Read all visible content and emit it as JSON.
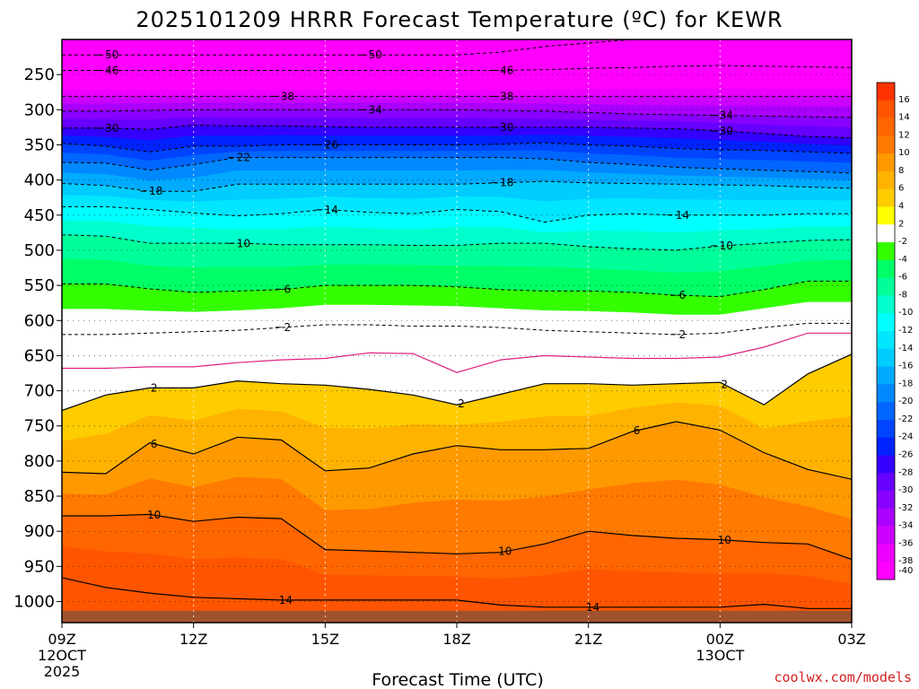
{
  "chart_data": {
    "type": "heatmap",
    "title": "2025101209 HRRR Forecast Temperature (ºC) for KEWR",
    "xlabel": "Forecast Time (UTC)",
    "ylabel": "",
    "x_ticks": [
      {
        "hour": 0,
        "label": "09Z",
        "sub": [
          "12OCT",
          "2025"
        ]
      },
      {
        "hour": 3,
        "label": "12Z",
        "sub": []
      },
      {
        "hour": 6,
        "label": "15Z",
        "sub": []
      },
      {
        "hour": 9,
        "label": "18Z",
        "sub": []
      },
      {
        "hour": 12,
        "label": "21Z",
        "sub": []
      },
      {
        "hour": 15,
        "label": "00Z",
        "sub": [
          "13OCT"
        ]
      },
      {
        "hour": 18,
        "label": "03Z",
        "sub": []
      }
    ],
    "y_ticks": [
      250,
      300,
      350,
      400,
      450,
      500,
      550,
      600,
      650,
      700,
      750,
      800,
      850,
      900,
      950,
      1000
    ],
    "ylim": [
      200,
      1030
    ],
    "x_hours": [
      0,
      1,
      2,
      3,
      4,
      5,
      6,
      7,
      8,
      9,
      10,
      11,
      12,
      13,
      14,
      15,
      16,
      17,
      18
    ],
    "colorbar_levels": [
      16,
      14,
      12,
      10,
      8,
      6,
      4,
      2,
      -2,
      -4,
      -6,
      -8,
      -10,
      -12,
      -14,
      -16,
      -18,
      -20,
      -22,
      -24,
      -26,
      -28,
      -30,
      -32,
      -34,
      -36,
      -38,
      -40
    ],
    "colorbar_colors": [
      "#ff3300",
      "#ff5500",
      "#ff6600",
      "#ff7a00",
      "#ff9900",
      "#ffb300",
      "#ffcc00",
      "#ffff00",
      "#ffffff",
      "#33ff00",
      "#00ff66",
      "#00ff99",
      "#00ffcc",
      "#00ffff",
      "#00e6ff",
      "#00ccff",
      "#00aaff",
      "#0088ff",
      "#0066ff",
      "#0044ff",
      "#0022ff",
      "#3300ff",
      "#6600ff",
      "#8800ff",
      "#aa00ff",
      "#cc00ff",
      "#ee00ff",
      "#ff00ff"
    ],
    "surface_color": "#a0522d",
    "isotherms": [
      {
        "t": -50,
        "labels": [
          {
            "hour": 1.1,
            "text": "50"
          },
          {
            "hour": 7.1,
            "text": "50"
          }
        ],
        "pres": [
          222,
          222,
          222,
          222,
          222,
          222,
          222,
          222,
          222,
          222,
          218,
          210,
          205,
          200,
          198,
          197,
          197,
          197,
          198
        ]
      },
      {
        "t": -46,
        "labels": [
          {
            "hour": 1.1,
            "text": "46"
          },
          {
            "hour": 10.1,
            "text": "46"
          }
        ],
        "pres": [
          244,
          244,
          244,
          244,
          244,
          244,
          244,
          244,
          244,
          244,
          244,
          243,
          241,
          240,
          238,
          237,
          238,
          239,
          240
        ]
      },
      {
        "t": -38,
        "labels": [
          {
            "hour": 5.1,
            "text": "38"
          },
          {
            "hour": 10.1,
            "text": "38"
          }
        ],
        "pres": [
          281,
          281,
          281,
          281,
          281,
          281,
          281,
          281,
          281,
          281,
          281,
          281,
          281,
          281,
          281,
          281,
          281,
          281,
          281
        ]
      },
      {
        "t": -34,
        "labels": [
          {
            "hour": 7.1,
            "text": "34"
          },
          {
            "hour": 15.1,
            "text": "34"
          }
        ],
        "pres": [
          302,
          302,
          301,
          300,
          300,
          300,
          300,
          300,
          300,
          300,
          301,
          302,
          304,
          306,
          307,
          308,
          309,
          310,
          311
        ]
      },
      {
        "t": -30,
        "labels": [
          {
            "hour": 1.1,
            "text": "30"
          },
          {
            "hour": 10.1,
            "text": "30"
          },
          {
            "hour": 15.1,
            "text": "30"
          }
        ],
        "pres": [
          326,
          326,
          328,
          322,
          323,
          323,
          324,
          325,
          325,
          325,
          325,
          325,
          325,
          326,
          327,
          330,
          334,
          338,
          340
        ]
      },
      {
        "t": -26,
        "labels": [
          {
            "hour": 6.1,
            "text": "26"
          }
        ],
        "pres": [
          348,
          352,
          360,
          352,
          352,
          350,
          350,
          350,
          350,
          350,
          349,
          347,
          350,
          352,
          355,
          357,
          358,
          360,
          362
        ]
      },
      {
        "t": -22,
        "labels": [
          {
            "hour": 4.1,
            "text": "22"
          }
        ],
        "pres": [
          375,
          376,
          386,
          378,
          368,
          368,
          368,
          368,
          368,
          368,
          368,
          370,
          375,
          378,
          382,
          384,
          386,
          388,
          390
        ]
      },
      {
        "t": -18,
        "labels": [
          {
            "hour": 2.1,
            "text": "18"
          },
          {
            "hour": 10.1,
            "text": "18"
          }
        ],
        "pres": [
          405,
          408,
          416,
          416,
          406,
          406,
          406,
          406,
          406,
          406,
          404,
          402,
          404,
          405,
          406,
          407,
          408,
          410,
          412
        ]
      },
      {
        "t": -14,
        "labels": [
          {
            "hour": 6.1,
            "text": "14"
          },
          {
            "hour": 14.1,
            "text": "14"
          }
        ],
        "pres": [
          438,
          438,
          442,
          447,
          451,
          448,
          442,
          446,
          448,
          442,
          445,
          460,
          450,
          448,
          450,
          450,
          450,
          448,
          448
        ]
      },
      {
        "t": -10,
        "labels": [
          {
            "hour": 4.1,
            "text": "10"
          },
          {
            "hour": 15.1,
            "text": "10"
          }
        ],
        "pres": [
          478,
          480,
          490,
          490,
          490,
          492,
          492,
          492,
          493,
          493,
          490,
          490,
          495,
          498,
          500,
          494,
          490,
          486,
          485
        ]
      },
      {
        "t": -6,
        "labels": [
          {
            "hour": 5.1,
            "text": "6"
          },
          {
            "hour": 14.1,
            "text": "6"
          }
        ],
        "pres": [
          548,
          548,
          555,
          560,
          558,
          556,
          550,
          550,
          550,
          552,
          556,
          558,
          558,
          560,
          564,
          566,
          556,
          544,
          544
        ]
      },
      {
        "t": -2,
        "labels": [
          {
            "hour": 5.1,
            "text": "2"
          },
          {
            "hour": 14.1,
            "text": "2"
          }
        ],
        "pres": [
          620,
          620,
          618,
          616,
          614,
          610,
          606,
          606,
          608,
          608,
          610,
          614,
          616,
          618,
          620,
          618,
          610,
          604,
          604
        ]
      },
      {
        "t": 0,
        "solid": true,
        "color": "#e0207f",
        "labels": [],
        "pres": [
          668,
          668,
          666,
          666,
          660,
          656,
          654,
          646,
          647,
          674,
          656,
          650,
          652,
          654,
          654,
          652,
          638,
          618,
          618
        ]
      },
      {
        "t": 2,
        "solid": true,
        "labels": [
          {
            "hour": 2.1,
            "text": "2"
          },
          {
            "hour": 9.1,
            "text": "2"
          },
          {
            "hour": 15.1,
            "text": "2"
          }
        ],
        "pres": [
          728,
          706,
          696,
          696,
          686,
          690,
          692,
          698,
          706,
          720,
          705,
          690,
          690,
          692,
          690,
          688,
          720,
          676,
          648
        ]
      },
      {
        "t": 6,
        "solid": true,
        "labels": [
          {
            "hour": 2.1,
            "text": "6"
          },
          {
            "hour": 13.1,
            "text": "6"
          }
        ],
        "pres": [
          816,
          818,
          774,
          790,
          766,
          770,
          814,
          810,
          790,
          778,
          784,
          784,
          782,
          758,
          744,
          756,
          788,
          812,
          826
        ]
      },
      {
        "t": 10,
        "solid": true,
        "labels": [
          {
            "hour": 2.1,
            "text": "10"
          },
          {
            "hour": 10.1,
            "text": "10"
          },
          {
            "hour": 15.1,
            "text": "10"
          }
        ],
        "pres": [
          878,
          878,
          876,
          886,
          880,
          882,
          926,
          928,
          930,
          932,
          930,
          918,
          900,
          906,
          910,
          912,
          916,
          918,
          940
        ]
      },
      {
        "t": 14,
        "solid": true,
        "labels": [
          {
            "hour": 5.1,
            "text": "14"
          },
          {
            "hour": 12.1,
            "text": "14"
          }
        ],
        "pres": [
          966,
          980,
          988,
          994,
          996,
          998,
          998,
          998,
          998,
          998,
          1005,
          1008,
          1008,
          1008,
          1008,
          1008,
          1004,
          1010,
          1010
        ]
      }
    ]
  },
  "credit": "coolwx.com/models"
}
